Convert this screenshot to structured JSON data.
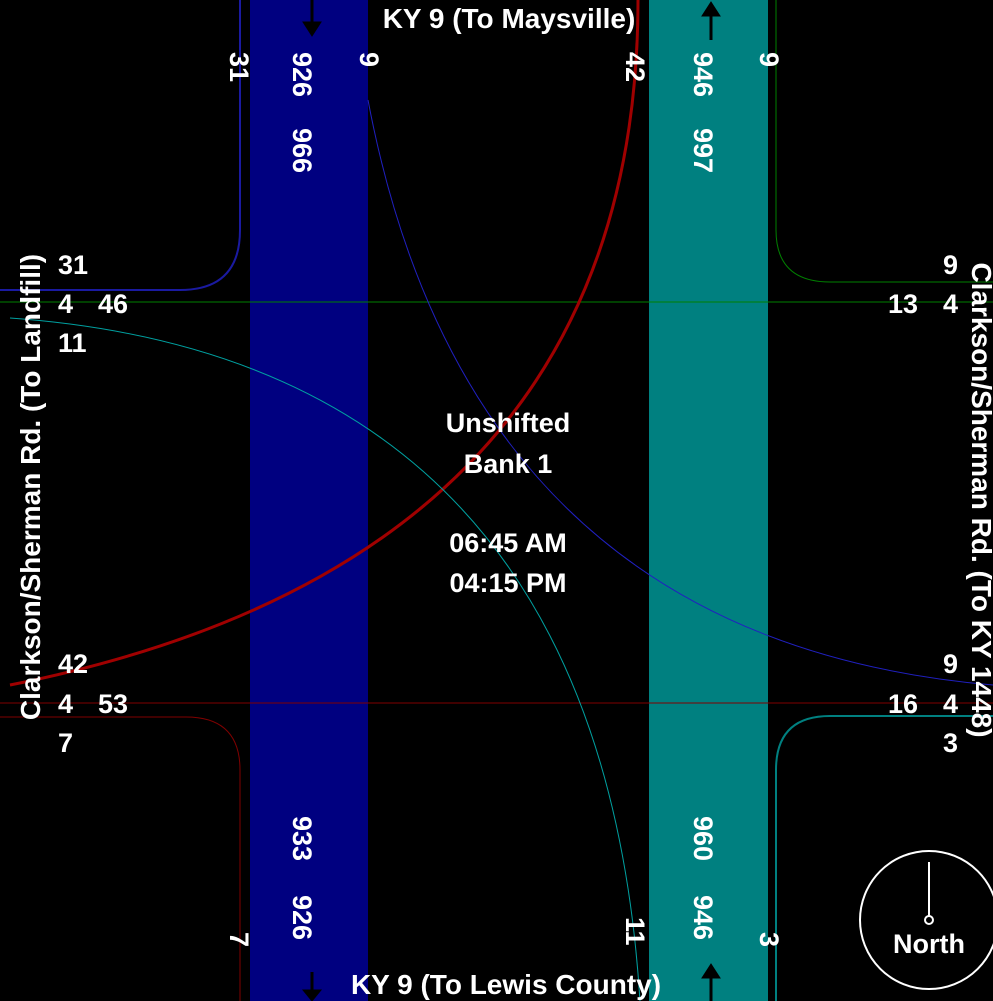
{
  "roads": {
    "north": "KY 9 (To Maysville)",
    "south": "KY 9 (To Lewis County)",
    "west": "Clarkson/Sherman Rd. (To Landfill)",
    "east": "Clarkson/Sherman Rd. (To KY 1448)"
  },
  "center": {
    "line1": "Unshifted",
    "line2": "Bank 1",
    "time1": "06:45 AM",
    "time2": "04:15 PM"
  },
  "north_leg": {
    "sb_left": "31",
    "sb_total": "926",
    "sb_in": "966",
    "sb_right": "9",
    "nb_left": "42",
    "nb_total": "946",
    "nb_out": "997",
    "nb_right": "9"
  },
  "south_leg": {
    "sb_left": "7",
    "sb_total": "926",
    "sb_out": "933",
    "nb_left": "11",
    "nb_total": "946",
    "nb_in": "960",
    "nb_right": "3"
  },
  "west_leg": {
    "top": "31",
    "mid_left": "4",
    "mid_right": "46",
    "low": "11",
    "b_top": "42",
    "b_mid_left": "4",
    "b_mid_right": "53",
    "b_low": "7"
  },
  "east_leg": {
    "top": "9",
    "mid_left": "13",
    "mid_right": "4",
    "b_top": "9",
    "b_mid_left": "16",
    "b_mid_right": "4",
    "b_low": "3"
  },
  "compass": {
    "label": "North"
  },
  "colors": {
    "southbound": "#000080",
    "northbound": "#008080",
    "east_west_top": "#008000",
    "east_west_bottom": "#800000",
    "left_turn_arc": "#800000"
  }
}
